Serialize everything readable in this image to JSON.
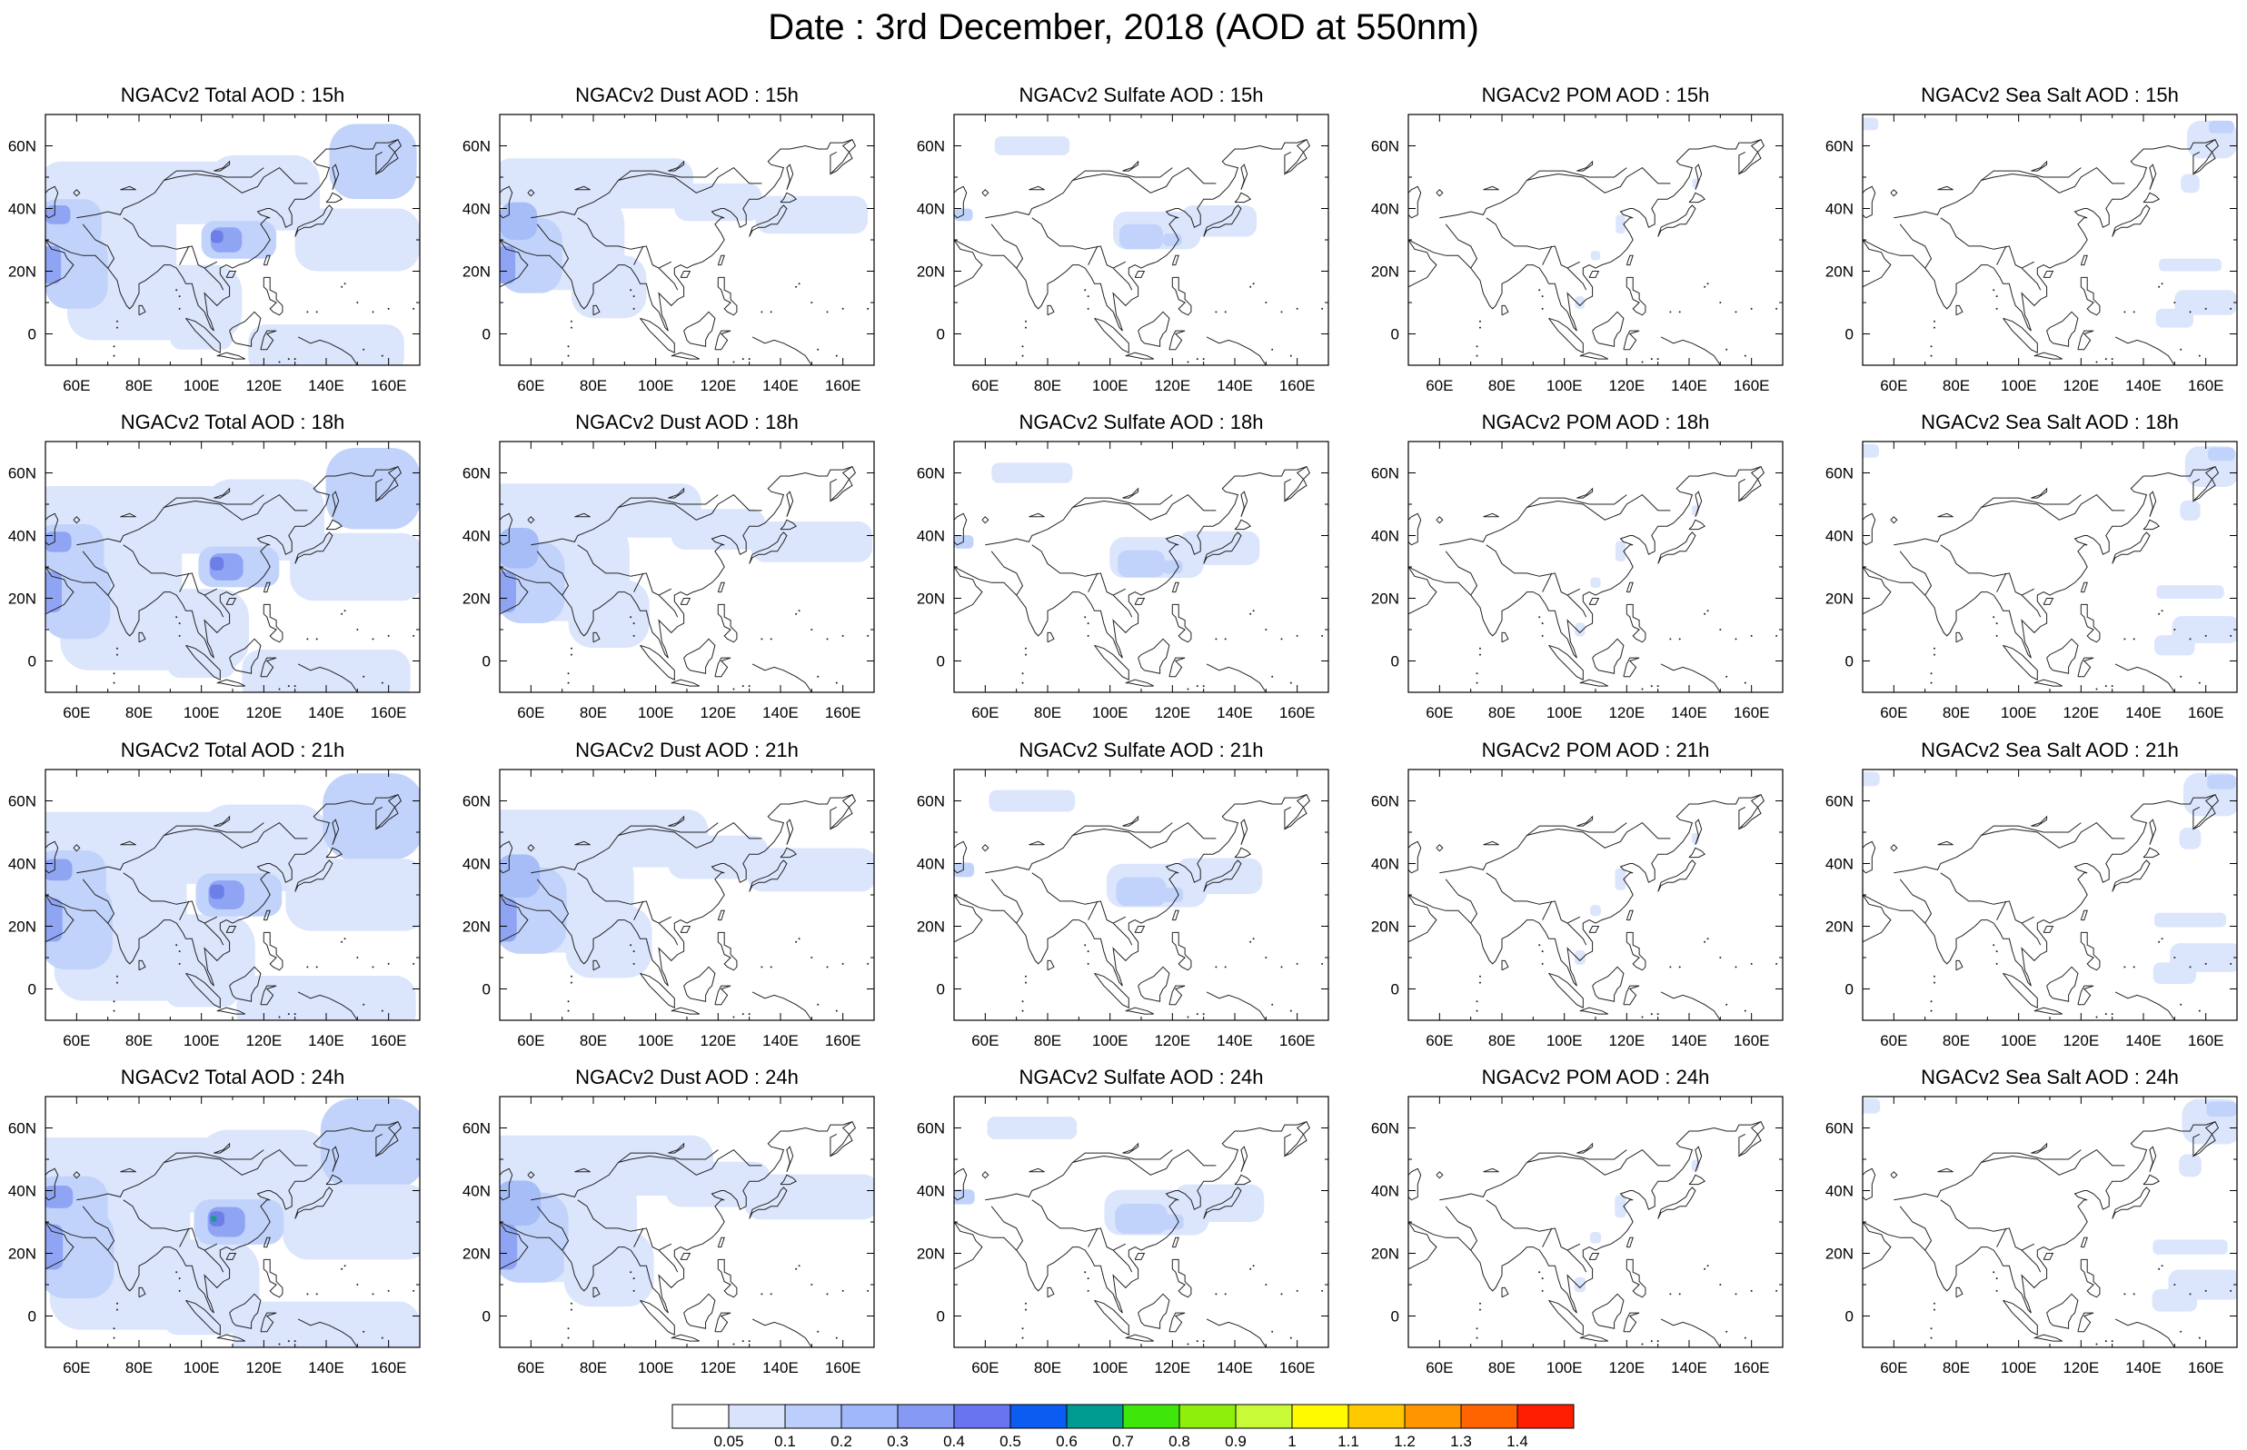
{
  "title": "Date : 3rd December, 2018 (AOD at 550nm)",
  "panel_rows": [
    {
      "hour": "15h",
      "titles": [
        "NGACv2 Total AOD : 15h",
        "NGACv2 Dust AOD : 15h",
        "NGACv2 Sulfate AOD : 15h",
        "NGACv2 POM AOD : 15h",
        "NGACv2 Sea Salt AOD : 15h"
      ]
    },
    {
      "hour": "18h",
      "titles": [
        "NGACv2 Total AOD : 18h",
        "NGACv2 Dust AOD : 18h",
        "NGACv2 Sulfate AOD : 18h",
        "NGACv2 POM AOD : 18h",
        "NGACv2 Sea Salt AOD : 18h"
      ]
    },
    {
      "hour": "21h",
      "titles": [
        "NGACv2 Total AOD : 21h",
        "NGACv2 Dust AOD : 21h",
        "NGACv2 Sulfate AOD : 21h",
        "NGACv2 POM AOD : 21h",
        "NGACv2 Sea Salt AOD : 21h"
      ]
    },
    {
      "hour": "24h",
      "titles": [
        "NGACv2 Total AOD : 24h",
        "NGACv2 Dust AOD : 24h",
        "NGACv2 Sulfate AOD : 24h",
        "NGACv2 POM AOD : 24h",
        "NGACv2 Sea Salt  AOD : 24h"
      ]
    }
  ],
  "species": [
    "Total",
    "Dust",
    "Sulfate",
    "POM",
    "Sea Salt"
  ],
  "map_extent": {
    "lon_min": 50,
    "lon_max": 170,
    "lat_min": -10,
    "lat_max": 70
  },
  "lon_ticks": [
    "60E",
    "80E",
    "100E",
    "120E",
    "140E",
    "160E"
  ],
  "lon_tick_values": [
    60,
    80,
    100,
    120,
    140,
    160
  ],
  "lat_ticks": [
    "60N",
    "40N",
    "20N",
    "0"
  ],
  "lat_tick_values": [
    60,
    40,
    20,
    0
  ],
  "colorbar": {
    "labels": [
      "0.05",
      "0.1",
      "0.2",
      "0.3",
      "0.4",
      "0.5",
      "0.6",
      "0.7",
      "0.8",
      "0.9",
      "1",
      "1.1",
      "1.2",
      "1.3",
      "1.4"
    ],
    "colors": [
      "#ffffff",
      "#d9e4fc",
      "#bccefb",
      "#a0b8fa",
      "#8599f5",
      "#6874f0",
      "#0b5cf0",
      "#009b91",
      "#3ee60a",
      "#8ef00a",
      "#c8fa37",
      "#fffa00",
      "#ffc800",
      "#ff9600",
      "#ff6400",
      "#ff1e00"
    ]
  },
  "field_colors": {
    "lightest": "#dbe5fc",
    "light": "#c2d3fb",
    "medium": "#a6bdf8",
    "dark": "#8fa5f4",
    "darkest": "#6d7ee8",
    "peak": "#1b9a8c"
  }
}
